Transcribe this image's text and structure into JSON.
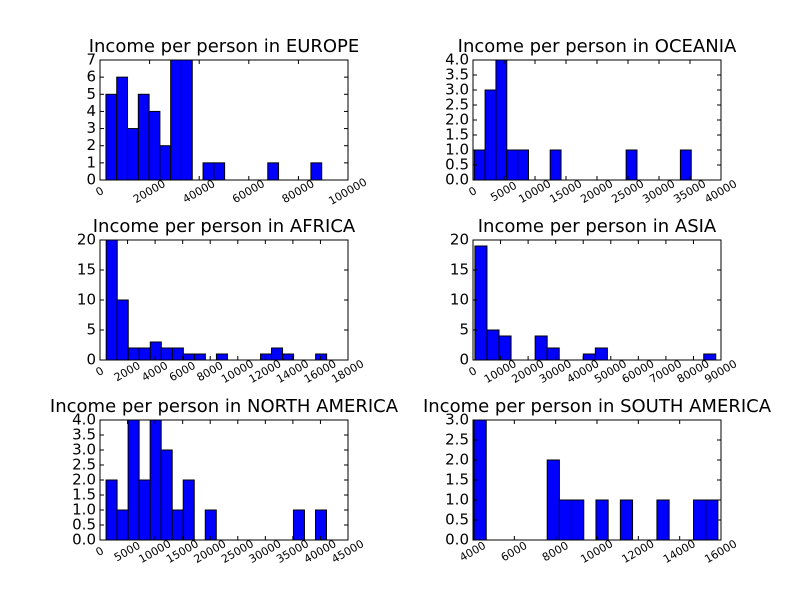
{
  "chart_data": [
    {
      "type": "histogram",
      "title": "Income per person in EUROPE",
      "color": "#0000ff",
      "bins": [
        2400,
        6750,
        11100,
        15450,
        19800,
        24150,
        28500,
        32850,
        37200,
        41550,
        45900,
        50250,
        54600,
        58950,
        63300,
        67650,
        72000,
        76350,
        80700,
        85050,
        89400
      ],
      "values": [
        5,
        6,
        3,
        5,
        4,
        2,
        7,
        7,
        0,
        1,
        1,
        0,
        0,
        0,
        0,
        1,
        0,
        0,
        0,
        1
      ],
      "xlim": [
        0,
        100000
      ],
      "xticks": [
        0,
        20000,
        40000,
        60000,
        80000,
        100000
      ],
      "ylim": [
        0,
        7
      ],
      "yticks": [
        0,
        1,
        2,
        3,
        4,
        5,
        6,
        7
      ]
    },
    {
      "type": "histogram",
      "title": "Income per person in OCEANIA",
      "color": "#0000ff",
      "bins": [
        200,
        1950,
        3700,
        5450,
        7200,
        8950,
        10700,
        12450,
        14200,
        15950,
        17700,
        19450,
        21200,
        22950,
        24700,
        26450,
        28200,
        29950,
        31700,
        33450,
        35200
      ],
      "values": [
        1,
        3,
        4,
        1,
        1,
        0,
        0,
        1,
        0,
        0,
        0,
        0,
        0,
        0,
        1,
        0,
        0,
        0,
        0,
        1
      ],
      "xlim": [
        0,
        40000
      ],
      "xticks": [
        0,
        5000,
        10000,
        15000,
        20000,
        25000,
        30000,
        35000,
        40000
      ],
      "ylim": [
        0,
        4
      ],
      "yticks": [
        {
          "value": 0,
          "label": "0.0"
        },
        0.5,
        {
          "value": 1,
          "label": "1.0"
        },
        1.5,
        {
          "value": 2,
          "label": "2.0"
        },
        2.5,
        {
          "value": 3,
          "label": "3.0"
        },
        3.5,
        {
          "value": 4,
          "label": "4.0"
        }
      ]
    },
    {
      "type": "histogram",
      "title": "Income per person in AFRICA",
      "color": "#0000ff",
      "bins": [
        450,
        1250,
        2050,
        2850,
        3650,
        4450,
        5250,
        6050,
        6850,
        7650,
        8450,
        9250,
        10050,
        10850,
        11650,
        12450,
        13250,
        14050,
        14850,
        15650,
        16450
      ],
      "values": [
        20,
        10,
        2,
        2,
        3,
        2,
        2,
        1,
        1,
        0,
        1,
        0,
        0,
        0,
        1,
        2,
        1,
        0,
        0,
        1
      ],
      "xlim": [
        0,
        18000
      ],
      "xticks": [
        0,
        2000,
        4000,
        6000,
        8000,
        10000,
        12000,
        14000,
        16000,
        18000
      ],
      "ylim": [
        0,
        20
      ],
      "yticks": [
        0,
        5,
        10,
        15,
        20
      ]
    },
    {
      "type": "histogram",
      "title": "Income per person in ASIA",
      "color": "#0000ff",
      "bins": [
        700,
        5070,
        9440,
        13810,
        18180,
        22550,
        26920,
        31290,
        35660,
        40030,
        44400,
        48770,
        53140,
        57510,
        61880,
        66250,
        70620,
        74990,
        79360,
        83730,
        88100
      ],
      "values": [
        19,
        5,
        4,
        0,
        0,
        4,
        2,
        0,
        0,
        1,
        2,
        0,
        0,
        0,
        0,
        0,
        0,
        0,
        0,
        1
      ],
      "xlim": [
        0,
        90000
      ],
      "xticks": [
        0,
        10000,
        20000,
        30000,
        40000,
        50000,
        60000,
        70000,
        80000,
        90000
      ],
      "ylim": [
        0,
        20
      ],
      "yticks": [
        0,
        5,
        10,
        15,
        20
      ]
    },
    {
      "type": "histogram",
      "title": "Income per person in NORTH AMERICA",
      "color": "#0000ff",
      "bins": [
        1100,
        3100,
        5100,
        7100,
        9100,
        11100,
        13100,
        15100,
        17100,
        19100,
        21100,
        23100,
        25100,
        27100,
        29100,
        31100,
        33100,
        35100,
        37100,
        39100,
        41100
      ],
      "values": [
        2,
        1,
        4,
        2,
        4,
        3,
        1,
        2,
        0,
        1,
        0,
        0,
        0,
        0,
        0,
        0,
        0,
        1,
        0,
        1
      ],
      "xlim": [
        0,
        45000
      ],
      "xticks": [
        0,
        5000,
        10000,
        15000,
        20000,
        25000,
        30000,
        35000,
        40000,
        45000
      ],
      "ylim": [
        0,
        4
      ],
      "yticks": [
        {
          "value": 0,
          "label": "0.0"
        },
        0.5,
        {
          "value": 1,
          "label": "1.0"
        },
        1.5,
        {
          "value": 2,
          "label": "2.0"
        },
        2.5,
        {
          "value": 3,
          "label": "3.0"
        },
        3.5,
        {
          "value": 4,
          "label": "4.0"
        }
      ]
    },
    {
      "type": "histogram",
      "title": "Income per person in SOUTH AMERICA",
      "color": "#0000ff",
      "bins": [
        4050,
        4640,
        5230,
        5820,
        6410,
        7000,
        7590,
        8180,
        8770,
        9360,
        9950,
        10540,
        11130,
        11720,
        12310,
        12900,
        13490,
        14080,
        14670,
        15260,
        15850
      ],
      "values": [
        3,
        0,
        0,
        0,
        0,
        0,
        2,
        1,
        1,
        0,
        1,
        0,
        1,
        0,
        0,
        1,
        0,
        0,
        1,
        1
      ],
      "xlim": [
        4000,
        16000
      ],
      "xticks": [
        4000,
        6000,
        8000,
        10000,
        12000,
        14000,
        16000
      ],
      "ylim": [
        0,
        3
      ],
      "yticks": [
        {
          "value": 0,
          "label": "0.0"
        },
        0.5,
        {
          "value": 1,
          "label": "1.0"
        },
        1.5,
        {
          "value": 2,
          "label": "2.0"
        },
        2.5,
        {
          "value": 3,
          "label": "3.0"
        }
      ]
    }
  ]
}
